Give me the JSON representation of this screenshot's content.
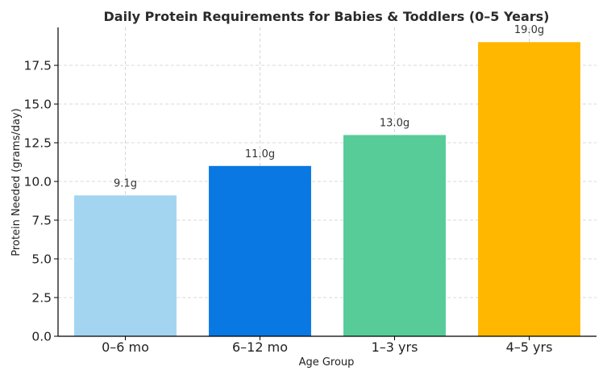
{
  "chart_data": {
    "type": "bar",
    "title": "Daily Protein Requirements for Babies & Toddlers (0–5 Years)",
    "xlabel": "Age Group",
    "ylabel": "Protein Needed (grams/day)",
    "categories": [
      "0–6 mo",
      "6–12 mo",
      "1–3 yrs",
      "4–5 yrs"
    ],
    "values": [
      9.1,
      11.0,
      13.0,
      19.0
    ],
    "data_labels": [
      "9.1g",
      "11.0g",
      "13.0g",
      "19.0g"
    ],
    "colors": [
      "#a3d5f1",
      "#0a78e3",
      "#57cc99",
      "#ffb700"
    ],
    "ylim": [
      0,
      19.95
    ],
    "yticks": [
      0,
      2.5,
      5,
      7.5,
      10,
      12.5,
      15,
      17.5
    ],
    "ytick_labels": [
      "0.0",
      "2.5",
      "5.0",
      "7.5",
      "10.0",
      "12.5",
      "15.0",
      "17.5"
    ],
    "grid": true
  }
}
